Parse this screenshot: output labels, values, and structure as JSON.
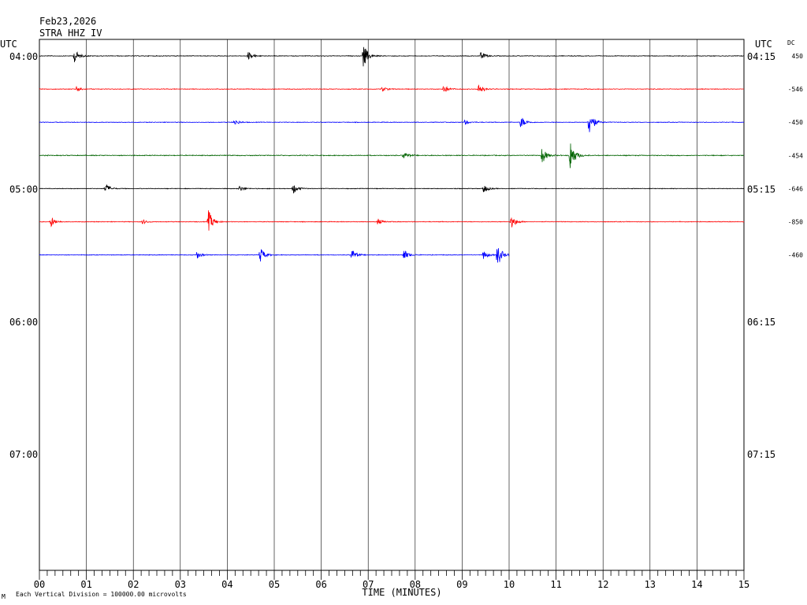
{
  "header": {
    "date": "Feb23,2026",
    "station": "STRA HHZ IV",
    "utc_left": "UTC",
    "utc_right": "UTC",
    "dc": "DC"
  },
  "footer": {
    "scale_note": "Each Vertical Division = 100000.00 microvolts",
    "corner_mark": "M"
  },
  "chart_data": {
    "type": "line",
    "title": "STRA HHZ IV",
    "xlabel": "TIME (MINUTES)",
    "ylabel": "",
    "x_ticks": [
      "00",
      "01",
      "02",
      "03",
      "04",
      "05",
      "06",
      "07",
      "08",
      "09",
      "10",
      "11",
      "12",
      "13",
      "14",
      "15"
    ],
    "xlim": [
      0,
      15
    ],
    "grid": true,
    "left_time_labels": [
      "04:00",
      "05:00",
      "06:00",
      "07:00"
    ],
    "right_time_labels": [
      "04:15",
      "05:15",
      "06:15",
      "07:15"
    ],
    "traces": [
      {
        "start": "04:00",
        "color": "#000000",
        "dc": "450",
        "end_minute": 15,
        "noise": 0.35,
        "events": [
          {
            "t": 0.75,
            "a": 9
          },
          {
            "t": 4.45,
            "a": 6
          },
          {
            "t": 6.9,
            "a": 16
          },
          {
            "t": 9.4,
            "a": 5
          }
        ]
      },
      {
        "start": "04:15",
        "color": "#ff0000",
        "dc": "-546",
        "end_minute": 15,
        "noise": 0.35,
        "events": [
          {
            "t": 0.8,
            "a": 4
          },
          {
            "t": 7.3,
            "a": 3
          },
          {
            "t": 8.6,
            "a": 6
          },
          {
            "t": 9.35,
            "a": 7
          }
        ]
      },
      {
        "start": "04:30",
        "color": "#0000ff",
        "dc": "-450",
        "end_minute": 15,
        "noise": 0.35,
        "events": [
          {
            "t": 4.15,
            "a": 4
          },
          {
            "t": 9.05,
            "a": 3
          },
          {
            "t": 10.25,
            "a": 8
          },
          {
            "t": 11.7,
            "a": 20
          }
        ]
      },
      {
        "start": "04:45",
        "color": "#006400",
        "dc": "-454",
        "end_minute": 15,
        "noise": 0.45,
        "events": [
          {
            "t": 7.75,
            "a": 5
          },
          {
            "t": 10.7,
            "a": 11
          },
          {
            "t": 11.3,
            "a": 22
          }
        ]
      },
      {
        "start": "05:00",
        "color": "#000000",
        "dc": "-646",
        "end_minute": 15,
        "noise": 0.35,
        "events": [
          {
            "t": 1.4,
            "a": 7
          },
          {
            "t": 4.25,
            "a": 4
          },
          {
            "t": 5.4,
            "a": 7
          },
          {
            "t": 9.45,
            "a": 6
          }
        ]
      },
      {
        "start": "05:15",
        "color": "#ff0000",
        "dc": "-850",
        "end_minute": 15,
        "noise": 0.35,
        "events": [
          {
            "t": 0.25,
            "a": 7
          },
          {
            "t": 2.2,
            "a": 3
          },
          {
            "t": 3.6,
            "a": 15
          },
          {
            "t": 7.2,
            "a": 4
          },
          {
            "t": 10.05,
            "a": 9
          }
        ]
      },
      {
        "start": "05:30",
        "color": "#0000ff",
        "dc": "-460",
        "end_minute": 10.0,
        "noise": 0.35,
        "events": [
          {
            "t": 3.35,
            "a": 5
          },
          {
            "t": 4.7,
            "a": 10
          },
          {
            "t": 6.65,
            "a": 8
          },
          {
            "t": 7.75,
            "a": 8
          },
          {
            "t": 9.45,
            "a": 6
          },
          {
            "t": 9.75,
            "a": 16
          }
        ]
      }
    ]
  }
}
